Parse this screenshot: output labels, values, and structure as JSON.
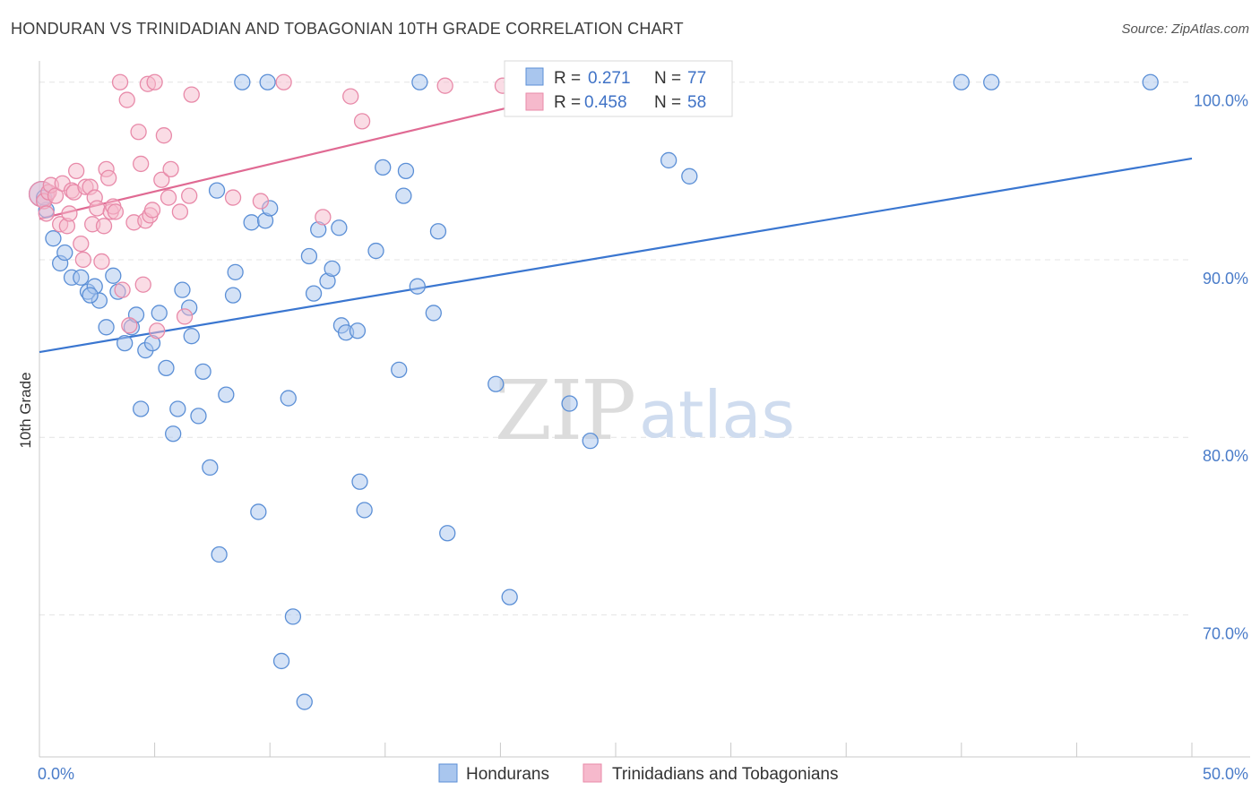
{
  "title": "HONDURAN VS TRINIDADIAN AND TOBAGONIAN 10TH GRADE CORRELATION CHART",
  "source": "Source: ZipAtlas.com",
  "watermark": {
    "zip": "ZIP",
    "atlas": "atlas"
  },
  "colors": {
    "blue_fill": "#a9c6ee",
    "blue_stroke": "#5b8fd6",
    "blue_line": "#3a76d0",
    "pink_fill": "#f6b9cc",
    "pink_stroke": "#e88aa9",
    "pink_line": "#e06a93",
    "tick": "#4a7cc9",
    "grid": "#e4e4e4"
  },
  "legend": {
    "rows": [
      {
        "r_label": "R =",
        "r_value": "0.271",
        "n_label": "N =",
        "n_value": "77",
        "series": "blue"
      },
      {
        "r_label": "R =",
        "r_value": "0.458",
        "n_label": "N =",
        "n_value": "58",
        "series": "pink"
      }
    ]
  },
  "chart_data": {
    "type": "scatter",
    "title": "HONDURAN VS TRINIDADIAN AND TOBAGONIAN 10TH GRADE CORRELATION CHART",
    "xlabel": "",
    "ylabel": "10th Grade",
    "xlim": [
      0,
      50
    ],
    "ylim": [
      62,
      101.5
    ],
    "x_tick_labels": [
      "0.0%",
      "50.0%"
    ],
    "y_ticks": [
      70,
      80,
      90,
      100
    ],
    "y_tick_labels": [
      "70.0%",
      "80.0%",
      "90.0%",
      "100.0%"
    ],
    "grid": true,
    "legend_position": "top-center",
    "series": [
      {
        "name": "Hondurans",
        "color": "blue",
        "trend": {
          "x0": 0,
          "y0": 84.8,
          "x1": 50,
          "y1": 95.7
        },
        "points": [
          [
            0.1,
            93.7
          ],
          [
            0.3,
            92.8
          ],
          [
            0.6,
            91.2
          ],
          [
            0.9,
            89.8
          ],
          [
            1.1,
            90.4
          ],
          [
            1.4,
            89.0
          ],
          [
            1.8,
            89.0
          ],
          [
            2.1,
            88.2
          ],
          [
            2.4,
            88.5
          ],
          [
            2.6,
            87.7
          ],
          [
            2.9,
            86.2
          ],
          [
            3.2,
            89.1
          ],
          [
            3.4,
            88.2
          ],
          [
            3.7,
            85.3
          ],
          [
            4.0,
            86.2
          ],
          [
            4.2,
            86.9
          ],
          [
            4.4,
            81.6
          ],
          [
            4.6,
            84.9
          ],
          [
            4.9,
            85.3
          ],
          [
            5.2,
            87.0
          ],
          [
            5.5,
            83.9
          ],
          [
            5.8,
            80.2
          ],
          [
            6.0,
            81.6
          ],
          [
            6.2,
            88.3
          ],
          [
            6.5,
            87.3
          ],
          [
            6.6,
            85.7
          ],
          [
            6.9,
            81.2
          ],
          [
            7.1,
            83.7
          ],
          [
            7.4,
            78.3
          ],
          [
            7.7,
            93.9
          ],
          [
            7.8,
            73.4
          ],
          [
            8.1,
            82.4
          ],
          [
            8.4,
            88.0
          ],
          [
            8.5,
            89.3
          ],
          [
            8.8,
            100.0
          ],
          [
            9.2,
            92.1
          ],
          [
            9.5,
            75.8
          ],
          [
            9.8,
            92.2
          ],
          [
            10.0,
            92.9
          ],
          [
            9.9,
            100.0
          ],
          [
            10.5,
            67.4
          ],
          [
            10.8,
            82.2
          ],
          [
            11.0,
            69.9
          ],
          [
            11.5,
            65.1
          ],
          [
            11.7,
            90.2
          ],
          [
            11.9,
            88.1
          ],
          [
            12.1,
            91.7
          ],
          [
            12.5,
            88.8
          ],
          [
            12.7,
            89.5
          ],
          [
            13.0,
            91.8
          ],
          [
            13.1,
            86.3
          ],
          [
            13.3,
            85.9
          ],
          [
            13.8,
            86.0
          ],
          [
            13.9,
            77.5
          ],
          [
            14.1,
            75.9
          ],
          [
            14.6,
            90.5
          ],
          [
            14.9,
            95.2
          ],
          [
            15.6,
            83.8
          ],
          [
            15.8,
            93.6
          ],
          [
            15.9,
            95.0
          ],
          [
            16.4,
            88.5
          ],
          [
            16.5,
            100.0
          ],
          [
            17.1,
            87.0
          ],
          [
            17.3,
            91.6
          ],
          [
            17.7,
            74.6
          ],
          [
            19.8,
            83.0
          ],
          [
            20.4,
            71.0
          ],
          [
            23.0,
            81.9
          ],
          [
            23.9,
            79.8
          ],
          [
            27.3,
            95.6
          ],
          [
            28.2,
            94.7
          ],
          [
            29.5,
            100.0
          ],
          [
            40.0,
            100.0
          ],
          [
            41.3,
            100.0
          ],
          [
            48.2,
            100.0
          ],
          [
            0.2,
            93.5
          ],
          [
            2.2,
            88.0
          ]
        ]
      },
      {
        "name": "Trinidadians and Tobagonians",
        "color": "pink",
        "trend": {
          "x0": 0,
          "y0": 92.3,
          "x1": 25,
          "y1": 100.0
        },
        "points": [
          [
            0.1,
            93.7
          ],
          [
            0.2,
            93.3
          ],
          [
            0.3,
            92.6
          ],
          [
            0.4,
            93.8
          ],
          [
            0.5,
            94.2
          ],
          [
            0.7,
            93.6
          ],
          [
            0.9,
            92.0
          ],
          [
            1.0,
            94.3
          ],
          [
            1.2,
            91.9
          ],
          [
            1.3,
            92.6
          ],
          [
            1.4,
            93.9
          ],
          [
            1.5,
            93.8
          ],
          [
            1.6,
            95.0
          ],
          [
            1.8,
            90.9
          ],
          [
            1.9,
            90.0
          ],
          [
            2.0,
            94.1
          ],
          [
            2.2,
            94.1
          ],
          [
            2.3,
            92.0
          ],
          [
            2.4,
            93.5
          ],
          [
            2.5,
            92.9
          ],
          [
            2.7,
            89.9
          ],
          [
            2.8,
            91.9
          ],
          [
            2.9,
            95.1
          ],
          [
            3.0,
            94.6
          ],
          [
            3.1,
            92.7
          ],
          [
            3.2,
            93.0
          ],
          [
            3.3,
            92.7
          ],
          [
            3.5,
            100.0
          ],
          [
            3.6,
            88.3
          ],
          [
            3.8,
            99.0
          ],
          [
            3.9,
            86.3
          ],
          [
            4.1,
            92.1
          ],
          [
            4.3,
            97.2
          ],
          [
            4.4,
            95.4
          ],
          [
            4.5,
            88.6
          ],
          [
            4.6,
            92.2
          ],
          [
            4.7,
            99.9
          ],
          [
            4.8,
            92.5
          ],
          [
            4.9,
            92.8
          ],
          [
            5.0,
            100.0
          ],
          [
            5.1,
            86.0
          ],
          [
            5.3,
            94.5
          ],
          [
            5.4,
            97.0
          ],
          [
            5.6,
            93.5
          ],
          [
            5.7,
            95.1
          ],
          [
            6.1,
            92.7
          ],
          [
            6.3,
            86.8
          ],
          [
            6.5,
            93.6
          ],
          [
            6.6,
            99.3
          ],
          [
            8.4,
            93.5
          ],
          [
            9.6,
            93.3
          ],
          [
            10.6,
            100.0
          ],
          [
            12.3,
            92.4
          ],
          [
            13.5,
            99.2
          ],
          [
            14.0,
            97.8
          ],
          [
            17.6,
            99.8
          ],
          [
            20.1,
            99.8
          ],
          [
            26.7,
            100.0
          ]
        ]
      }
    ]
  }
}
